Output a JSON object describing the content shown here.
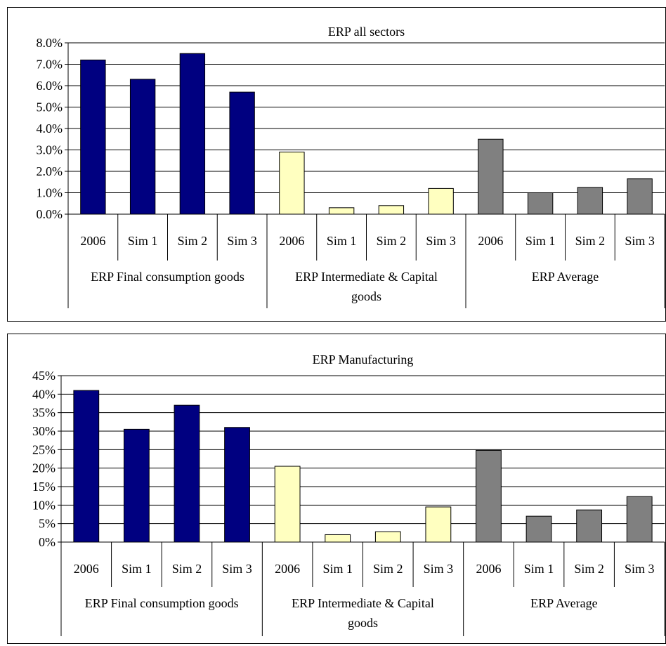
{
  "chart_data": [
    {
      "type": "bar",
      "title": "ERP all sectors",
      "xlabel": "",
      "ylabel": "",
      "ylim": [
        0,
        8
      ],
      "ytick_step": 1,
      "ytick_format": "%.1f",
      "grid": true,
      "legend": "none",
      "categories": [
        "2006",
        "Sim 1",
        "Sim 2",
        "Sim 3",
        "2006",
        "Sim 1",
        "Sim 2",
        "Sim 3",
        "2006",
        "Sim 1",
        "Sim 2",
        "Sim 3"
      ],
      "groups": [
        {
          "label": "ERP Final consumption goods",
          "color": "#000080",
          "values": [
            7.2,
            6.3,
            7.5,
            5.7
          ]
        },
        {
          "label": "ERP Intermediate & Capital goods",
          "color": "#FFFFC0",
          "values": [
            2.9,
            0.3,
            0.4,
            1.2
          ]
        },
        {
          "label": "ERP Average",
          "color": "#808080",
          "values": [
            3.5,
            1.0,
            1.25,
            1.65
          ]
        }
      ]
    },
    {
      "type": "bar",
      "title": "ERP Manufacturing",
      "xlabel": "",
      "ylabel": "",
      "ylim": [
        0,
        45
      ],
      "ytick_step": 5,
      "ytick_format": "%d",
      "grid": true,
      "legend": "none",
      "categories": [
        "2006",
        "Sim 1",
        "Sim 2",
        "Sim 3",
        "2006",
        "Sim 1",
        "Sim 2",
        "Sim 3",
        "2006",
        "Sim 1",
        "Sim 2",
        "Sim 3"
      ],
      "groups": [
        {
          "label": "ERP Final consumption goods",
          "color": "#000080",
          "values": [
            41,
            30.5,
            37,
            31
          ]
        },
        {
          "label": "ERP Intermediate & Capital goods",
          "color": "#FFFFC0",
          "values": [
            20.5,
            2,
            2.8,
            9.5
          ]
        },
        {
          "label": "ERP Average",
          "color": "#808080",
          "values": [
            24.8,
            7,
            8.7,
            12.3
          ]
        }
      ]
    }
  ]
}
